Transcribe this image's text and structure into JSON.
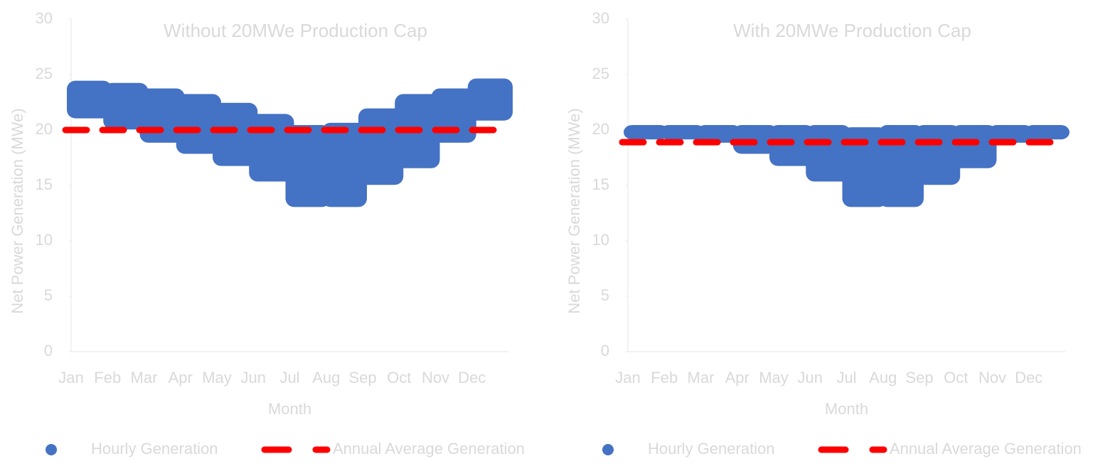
{
  "chart_data": [
    {
      "type": "scatter",
      "title": "Without 20MWe Production Cap",
      "x_label": "Month",
      "y_label": "Net Power Generation (MWe)",
      "categories": [
        "Jan",
        "Feb",
        "Mar",
        "Apr",
        "May",
        "Jun",
        "Jul",
        "Aug",
        "Sep",
        "Oct",
        "Nov",
        "Dec"
      ],
      "ylim": [
        0,
        30
      ],
      "yticks": [
        0,
        5,
        10,
        15,
        20,
        25,
        30
      ],
      "series": [
        {
          "name": "Hourly Generation",
          "color": "#4472c4",
          "low": [
            21.5,
            20.5,
            19.3,
            18.3,
            17.2,
            15.8,
            13.5,
            13.5,
            15.5,
            17,
            19.3,
            21.3
          ],
          "high": [
            24,
            23.8,
            23.3,
            22.8,
            22,
            21,
            20,
            20.2,
            21.5,
            22.8,
            23.3,
            24.2
          ]
        },
        {
          "name": "Annual Average Generation",
          "color": "#ff0000",
          "value": 20
        }
      ]
    },
    {
      "type": "scatter",
      "title": "With 20MWe Production Cap",
      "x_label": "Month",
      "y_label": "Net Power Generation (MWe)",
      "categories": [
        "Jan",
        "Feb",
        "Mar",
        "Apr",
        "May",
        "Jun",
        "Jul",
        "Aug",
        "Sep",
        "Oct",
        "Nov",
        "Dec"
      ],
      "ylim": [
        0,
        30
      ],
      "yticks": [
        0,
        5,
        10,
        15,
        20,
        25,
        30
      ],
      "series": [
        {
          "name": "Hourly Generation",
          "color": "#4472c4",
          "low": [
            19.6,
            19.6,
            19.3,
            18.3,
            17.2,
            15.8,
            13.5,
            13.5,
            15.5,
            17,
            19.3,
            19.6
          ],
          "high": [
            20,
            20,
            20,
            20,
            20,
            20,
            19.8,
            20,
            20,
            20,
            20,
            20
          ]
        },
        {
          "name": "Annual Average Generation",
          "color": "#ff0000",
          "value": 18.9
        }
      ]
    }
  ]
}
